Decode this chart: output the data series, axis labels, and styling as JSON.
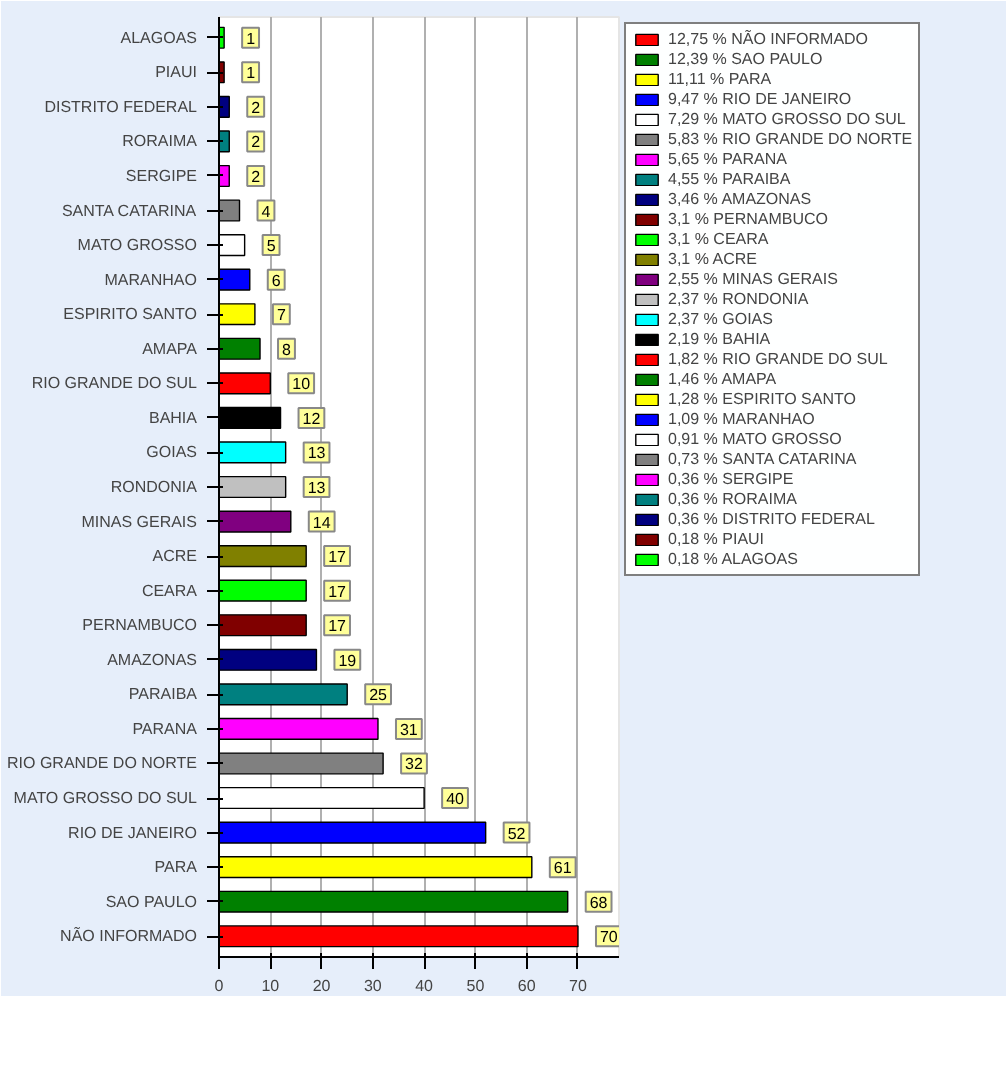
{
  "chart_data": {
    "type": "bar",
    "orientation": "horizontal",
    "categories": [
      "ALAGOAS",
      "PIAUI",
      "DISTRITO FEDERAL",
      "RORAIMA",
      "SERGIPE",
      "SANTA CATARINA",
      "MATO GROSSO",
      "MARANHAO",
      "ESPIRITO SANTO",
      "AMAPA",
      "RIO GRANDE DO SUL",
      "BAHIA",
      "GOIAS",
      "RONDONIA",
      "MINAS GERAIS",
      "ACRE",
      "CEARA",
      "PERNAMBUCO",
      "AMAZONAS",
      "PARAIBA",
      "PARANA",
      "RIO GRANDE DO NORTE",
      "MATO GROSSO DO SUL",
      "RIO DE JANEIRO",
      "PARA",
      "SAO PAULO",
      "NÃO INFORMADO"
    ],
    "series": [
      {
        "name": "12,75 % NÃO INFORMADO",
        "color": "#ff0000",
        "values": [
          null,
          null,
          null,
          null,
          null,
          null,
          null,
          null,
          null,
          null,
          null,
          null,
          null,
          null,
          null,
          null,
          null,
          null,
          null,
          null,
          null,
          null,
          null,
          null,
          null,
          null,
          70
        ]
      },
      {
        "name": "12,39 % SAO PAULO",
        "color": "#008000",
        "values": [
          null,
          null,
          null,
          null,
          null,
          null,
          null,
          null,
          null,
          null,
          null,
          null,
          null,
          null,
          null,
          null,
          null,
          null,
          null,
          null,
          null,
          null,
          null,
          null,
          null,
          68,
          null
        ]
      },
      {
        "name": "11,11 % PARA",
        "color": "#ffff00",
        "values": [
          null,
          null,
          null,
          null,
          null,
          null,
          null,
          null,
          null,
          null,
          null,
          null,
          null,
          null,
          null,
          null,
          null,
          null,
          null,
          null,
          null,
          null,
          null,
          null,
          61,
          null,
          null
        ]
      },
      {
        "name": "9,47 % RIO DE JANEIRO",
        "color": "#0000ff",
        "values": [
          null,
          null,
          null,
          null,
          null,
          null,
          null,
          null,
          null,
          null,
          null,
          null,
          null,
          null,
          null,
          null,
          null,
          null,
          null,
          null,
          null,
          null,
          null,
          52,
          null,
          null,
          null
        ]
      },
      {
        "name": "7,29 % MATO GROSSO DO SUL",
        "color": "#ffffff",
        "values": [
          null,
          null,
          null,
          null,
          null,
          null,
          null,
          null,
          null,
          null,
          null,
          null,
          null,
          null,
          null,
          null,
          null,
          null,
          null,
          null,
          null,
          null,
          40,
          null,
          null,
          null,
          null
        ]
      },
      {
        "name": "5,83 % RIO GRANDE DO NORTE",
        "color": "#808080",
        "values": [
          null,
          null,
          null,
          null,
          null,
          null,
          null,
          null,
          null,
          null,
          null,
          null,
          null,
          null,
          null,
          null,
          null,
          null,
          null,
          null,
          null,
          32,
          null,
          null,
          null,
          null,
          null
        ]
      },
      {
        "name": "5,65 % PARANA",
        "color": "#ff00ff",
        "values": [
          null,
          null,
          null,
          null,
          null,
          null,
          null,
          null,
          null,
          null,
          null,
          null,
          null,
          null,
          null,
          null,
          null,
          null,
          null,
          null,
          31,
          null,
          null,
          null,
          null,
          null,
          null
        ]
      },
      {
        "name": "4,55 % PARAIBA",
        "color": "#008080",
        "values": [
          null,
          null,
          null,
          null,
          null,
          null,
          null,
          null,
          null,
          null,
          null,
          null,
          null,
          null,
          null,
          null,
          null,
          null,
          null,
          25,
          null,
          null,
          null,
          null,
          null,
          null,
          null
        ]
      },
      {
        "name": "3,46 % AMAZONAS",
        "color": "#000080",
        "values": [
          null,
          null,
          null,
          null,
          null,
          null,
          null,
          null,
          null,
          null,
          null,
          null,
          null,
          null,
          null,
          null,
          null,
          null,
          19,
          null,
          null,
          null,
          null,
          null,
          null,
          null,
          null
        ]
      },
      {
        "name": "3,1 % PERNAMBUCO",
        "color": "#800000",
        "values": [
          null,
          null,
          null,
          null,
          null,
          null,
          null,
          null,
          null,
          null,
          null,
          null,
          null,
          null,
          null,
          null,
          null,
          17,
          null,
          null,
          null,
          null,
          null,
          null,
          null,
          null,
          null
        ]
      },
      {
        "name": "3,1 % CEARA",
        "color": "#00ff00",
        "values": [
          null,
          null,
          null,
          null,
          null,
          null,
          null,
          null,
          null,
          null,
          null,
          null,
          null,
          null,
          null,
          null,
          17,
          null,
          null,
          null,
          null,
          null,
          null,
          null,
          null,
          null,
          null
        ]
      },
      {
        "name": "3,1 % ACRE",
        "color": "#808000",
        "values": [
          null,
          null,
          null,
          null,
          null,
          null,
          null,
          null,
          null,
          null,
          null,
          null,
          null,
          null,
          null,
          17,
          null,
          null,
          null,
          null,
          null,
          null,
          null,
          null,
          null,
          null,
          null
        ]
      },
      {
        "name": "2,55 % MINAS GERAIS",
        "color": "#800080",
        "values": [
          null,
          null,
          null,
          null,
          null,
          null,
          null,
          null,
          null,
          null,
          null,
          null,
          null,
          null,
          14,
          null,
          null,
          null,
          null,
          null,
          null,
          null,
          null,
          null,
          null,
          null,
          null
        ]
      },
      {
        "name": "2,37 % RONDONIA",
        "color": "#c0c0c0",
        "values": [
          null,
          null,
          null,
          null,
          null,
          null,
          null,
          null,
          null,
          null,
          null,
          null,
          null,
          13,
          null,
          null,
          null,
          null,
          null,
          null,
          null,
          null,
          null,
          null,
          null,
          null,
          null
        ]
      },
      {
        "name": "2,37 % GOIAS",
        "color": "#00ffff",
        "values": [
          null,
          null,
          null,
          null,
          null,
          null,
          null,
          null,
          null,
          null,
          null,
          null,
          13,
          null,
          null,
          null,
          null,
          null,
          null,
          null,
          null,
          null,
          null,
          null,
          null,
          null,
          null
        ]
      },
      {
        "name": "2,19 % BAHIA",
        "color": "#000000",
        "values": [
          null,
          null,
          null,
          null,
          null,
          null,
          null,
          null,
          null,
          null,
          null,
          12,
          null,
          null,
          null,
          null,
          null,
          null,
          null,
          null,
          null,
          null,
          null,
          null,
          null,
          null,
          null
        ]
      },
      {
        "name": "1,82 % RIO GRANDE DO SUL",
        "color": "#ff0000",
        "values": [
          null,
          null,
          null,
          null,
          null,
          null,
          null,
          null,
          null,
          null,
          10,
          null,
          null,
          null,
          null,
          null,
          null,
          null,
          null,
          null,
          null,
          null,
          null,
          null,
          null,
          null,
          null
        ]
      },
      {
        "name": "1,46 % AMAPA",
        "color": "#008000",
        "values": [
          null,
          null,
          null,
          null,
          null,
          null,
          null,
          null,
          null,
          8,
          null,
          null,
          null,
          null,
          null,
          null,
          null,
          null,
          null,
          null,
          null,
          null,
          null,
          null,
          null,
          null,
          null
        ]
      },
      {
        "name": "1,28 % ESPIRITO SANTO",
        "color": "#ffff00",
        "values": [
          null,
          null,
          null,
          null,
          null,
          null,
          null,
          null,
          7,
          null,
          null,
          null,
          null,
          null,
          null,
          null,
          null,
          null,
          null,
          null,
          null,
          null,
          null,
          null,
          null,
          null,
          null
        ]
      },
      {
        "name": "1,09 % MARANHAO",
        "color": "#0000ff",
        "values": [
          null,
          null,
          null,
          null,
          null,
          null,
          null,
          6,
          null,
          null,
          null,
          null,
          null,
          null,
          null,
          null,
          null,
          null,
          null,
          null,
          null,
          null,
          null,
          null,
          null,
          null,
          null
        ]
      },
      {
        "name": "0,91 % MATO GROSSO",
        "color": "#ffffff",
        "values": [
          null,
          null,
          null,
          null,
          null,
          null,
          5,
          null,
          null,
          null,
          null,
          null,
          null,
          null,
          null,
          null,
          null,
          null,
          null,
          null,
          null,
          null,
          null,
          null,
          null,
          null,
          null
        ]
      },
      {
        "name": "0,73 % SANTA CATARINA",
        "color": "#808080",
        "values": [
          null,
          null,
          null,
          null,
          null,
          4,
          null,
          null,
          null,
          null,
          null,
          null,
          null,
          null,
          null,
          null,
          null,
          null,
          null,
          null,
          null,
          null,
          null,
          null,
          null,
          null,
          null
        ]
      },
      {
        "name": "0,36 % SERGIPE",
        "color": "#ff00ff",
        "values": [
          null,
          null,
          null,
          null,
          2,
          null,
          null,
          null,
          null,
          null,
          null,
          null,
          null,
          null,
          null,
          null,
          null,
          null,
          null,
          null,
          null,
          null,
          null,
          null,
          null,
          null,
          null
        ]
      },
      {
        "name": "0,36 % RORAIMA",
        "color": "#008080",
        "values": [
          null,
          null,
          null,
          2,
          null,
          null,
          null,
          null,
          null,
          null,
          null,
          null,
          null,
          null,
          null,
          null,
          null,
          null,
          null,
          null,
          null,
          null,
          null,
          null,
          null,
          null,
          null
        ]
      },
      {
        "name": "0,36 % DISTRITO FEDERAL",
        "color": "#000080",
        "values": [
          null,
          null,
          2,
          null,
          null,
          null,
          null,
          null,
          null,
          null,
          null,
          null,
          null,
          null,
          null,
          null,
          null,
          null,
          null,
          null,
          null,
          null,
          null,
          null,
          null,
          null,
          null
        ]
      },
      {
        "name": "0,18 % PIAUI",
        "color": "#800000",
        "values": [
          null,
          1,
          null,
          null,
          null,
          null,
          null,
          null,
          null,
          null,
          null,
          null,
          null,
          null,
          null,
          null,
          null,
          null,
          null,
          null,
          null,
          null,
          null,
          null,
          null,
          null,
          null
        ]
      },
      {
        "name": "0,18 % ALAGOAS",
        "color": "#00ff00",
        "values": [
          1,
          null,
          null,
          null,
          null,
          null,
          null,
          null,
          null,
          null,
          null,
          null,
          null,
          null,
          null,
          null,
          null,
          null,
          null,
          null,
          null,
          null,
          null,
          null,
          null,
          null,
          null
        ]
      }
    ],
    "xlim": [
      0,
      78
    ],
    "xticks": [
      0,
      10,
      20,
      30,
      40,
      50,
      60,
      70
    ],
    "data_labels": true,
    "grid": "x",
    "legend": "top right"
  }
}
